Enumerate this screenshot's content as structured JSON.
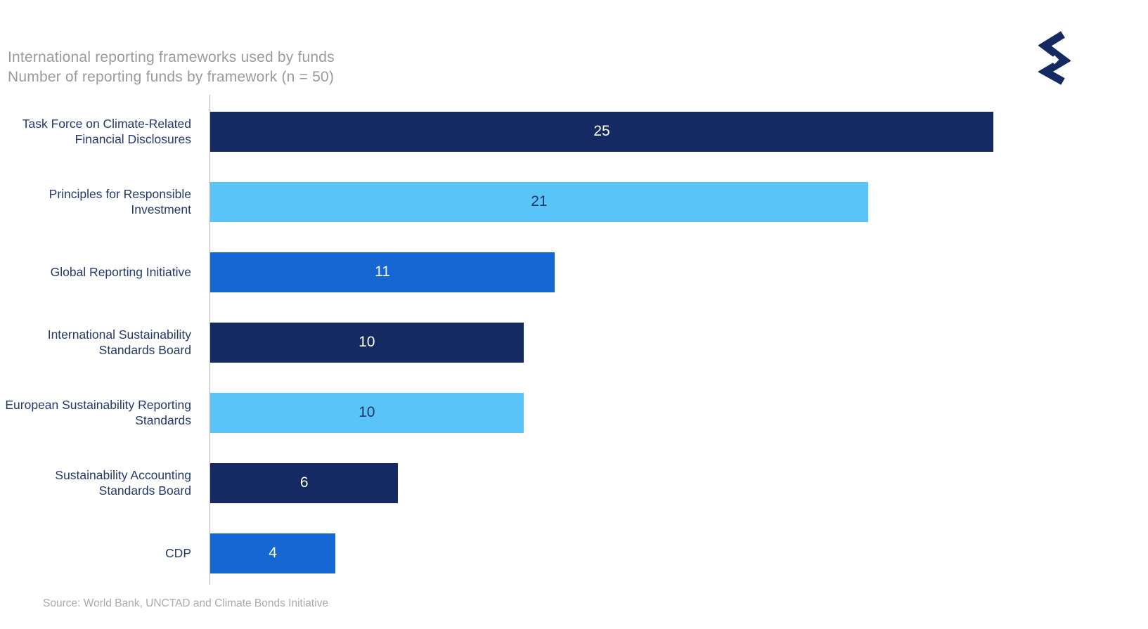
{
  "header": {
    "title_line1": "International reporting frameworks used by funds",
    "title_line2": "Number of reporting funds by framework (n = 50)"
  },
  "chart_data": {
    "type": "bar",
    "orientation": "horizontal",
    "title": "International reporting frameworks used by funds",
    "subtitle": "Number of reporting funds by framework (n = 50)",
    "categories": [
      "Task Force on Climate-Related Financial Disclosures",
      "Principles for Responsible Investment",
      "Global Reporting Initiative",
      "International Sustainability Standards Board",
      "European Sustainability Reporting Standards",
      "Sustainability Accounting Standards Board",
      "CDP"
    ],
    "values": [
      25,
      21,
      11,
      10,
      10,
      6,
      4
    ],
    "bar_colors": [
      "#152a63",
      "#5ac3f7",
      "#1565d2",
      "#152a63",
      "#5ac3f7",
      "#152a63",
      "#1565d2"
    ],
    "value_label_colors": [
      "#ffffff",
      "#1c3667",
      "#ffffff",
      "#ffffff",
      "#1c3667",
      "#ffffff",
      "#ffffff"
    ],
    "xlim": [
      0,
      25
    ],
    "grid": false,
    "legend": false,
    "data_labels": "inside-center",
    "source": "Source: World Bank, UNCTAD and Climate Bonds Initiative"
  },
  "colors": {
    "navy": "#152a63",
    "light_blue": "#5ac3f7",
    "medium_blue": "#1565d2",
    "title_gray": "#9b9b9b",
    "source_gray": "#ababab",
    "axis_gray": "#b5b5b5",
    "label_navy": "#24396b"
  },
  "logo": {
    "name": "zigzag-s-logo",
    "color": "#152a63"
  }
}
